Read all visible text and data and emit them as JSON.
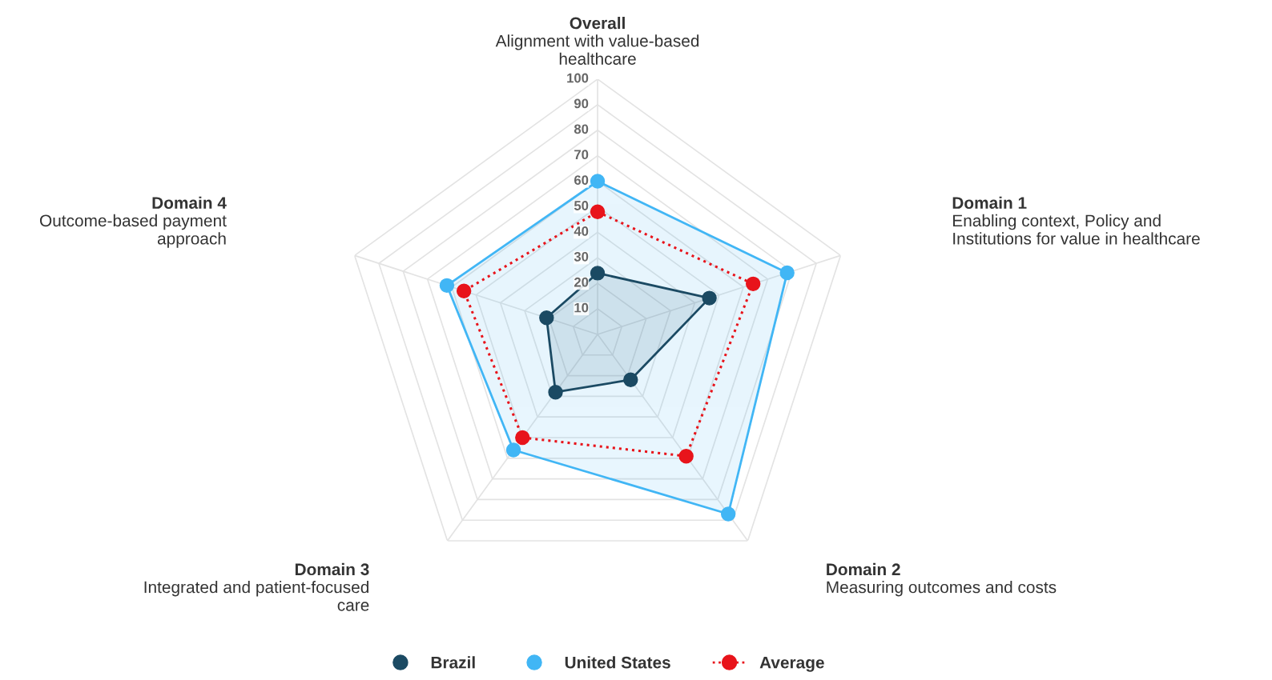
{
  "chart_data": {
    "type": "radar",
    "categories": [
      "Overall\nAlignment with value-based\nhealthcare",
      "Domain 1\nEnabling context, Policy and\nInstitutions for value in healthcare",
      "Domain 2\nMeasuring outcomes and costs",
      "Domain 3\nIntegrated and patient-focused\ncare",
      "Domain 4\nOutcome-based payment\napproach"
    ],
    "series": [
      {
        "name": "Brazil",
        "color": "#1b4a63",
        "values": [
          24,
          46,
          22,
          28,
          21
        ]
      },
      {
        "name": "United States",
        "color": "#41b6f5",
        "values": [
          60,
          78,
          87,
          56,
          62
        ]
      },
      {
        "name": "Average",
        "color": "#e8141b",
        "values": [
          48,
          64,
          59,
          50,
          55
        ],
        "line_style": "dotted"
      }
    ],
    "ylim": [
      0,
      100
    ],
    "yticks": [
      10,
      20,
      30,
      40,
      50,
      60,
      70,
      80,
      90,
      100
    ],
    "grid": true,
    "legend": "bottom",
    "marker": "circle"
  }
}
